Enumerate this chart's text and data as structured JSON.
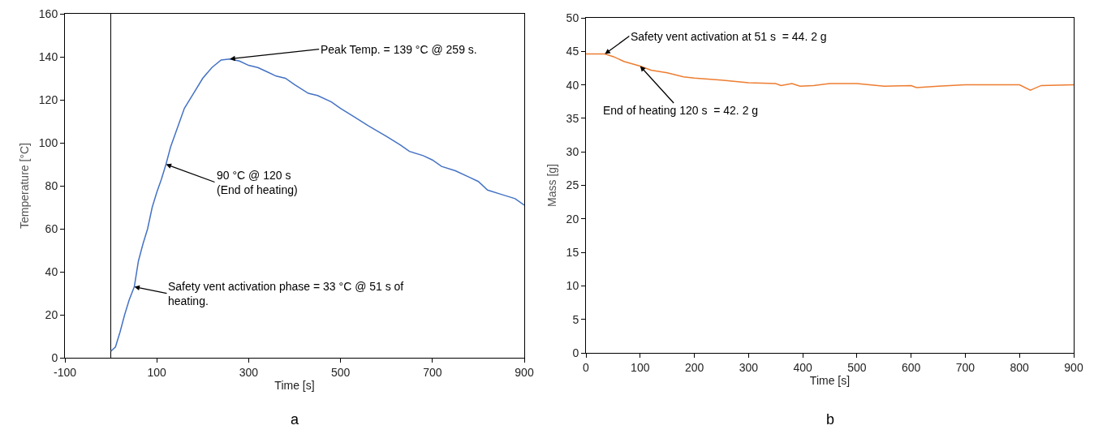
{
  "chart_data": [
    {
      "type": "line",
      "xlabel": "Time [s]",
      "ylabel": "Temperature [°C]",
      "xlim": [
        -100,
        900
      ],
      "xticks": [
        -100,
        100,
        300,
        500,
        700,
        900
      ],
      "ylim": [
        0,
        160
      ],
      "yticks": [
        0,
        20,
        40,
        60,
        80,
        100,
        120,
        140,
        160
      ],
      "grid": false,
      "marker": "none",
      "line_style": "solid",
      "series": [
        {
          "color": "#4472c4",
          "x": [
            0,
            10,
            20,
            30,
            40,
            51,
            60,
            70,
            80,
            90,
            100,
            110,
            120,
            130,
            150,
            160,
            180,
            200,
            220,
            240,
            259,
            280,
            300,
            320,
            340,
            360,
            380,
            400,
            430,
            450,
            480,
            500,
            530,
            560,
            600,
            630,
            650,
            680,
            700,
            720,
            750,
            780,
            800,
            820,
            850,
            880,
            900
          ],
          "values": [
            3,
            5,
            12,
            20,
            27,
            33,
            45,
            53,
            60,
            70,
            77,
            83,
            90,
            98,
            110,
            116,
            123,
            130,
            135,
            138.5,
            139,
            138,
            136,
            135,
            133,
            131,
            130,
            127,
            123,
            122,
            119,
            116,
            112,
            108,
            103,
            99,
            96,
            94,
            92,
            89,
            87,
            84,
            82,
            78,
            76,
            74,
            71
          ]
        }
      ],
      "annotations": [
        {
          "text": "Peak Temp. = 139 °C @ 259 s.",
          "x": 259,
          "y": 139
        },
        {
          "text": "90 °C @ 120 s\n(End of heating)",
          "x": 120,
          "y": 90
        },
        {
          "text": "Safety vent activation phase = 33 °C @ 51 s of\nheating.",
          "x": 51,
          "y": 33
        },
        "a"
      ]
    },
    {
      "type": "line",
      "xlabel": "Time [s]",
      "ylabel": "Mass [g]",
      "xlim": [
        0,
        900
      ],
      "xticks": [
        0,
        100,
        200,
        300,
        400,
        500,
        600,
        700,
        800,
        900
      ],
      "ylim": [
        0,
        50
      ],
      "yticks": [
        0,
        5,
        10,
        15,
        20,
        25,
        30,
        35,
        40,
        45,
        50
      ],
      "grid": false,
      "marker": "none",
      "line_style": "solid",
      "series": [
        {
          "color": "#ed7d31",
          "x": [
            0,
            35,
            51,
            70,
            100,
            120,
            150,
            180,
            200,
            250,
            300,
            350,
            360,
            380,
            395,
            420,
            450,
            500,
            550,
            600,
            610,
            650,
            700,
            800,
            820,
            840,
            900
          ],
          "values": [
            44.6,
            44.6,
            44.2,
            43.5,
            42.8,
            42.2,
            41.8,
            41.2,
            41,
            40.7,
            40.3,
            40.2,
            39.9,
            40.2,
            39.8,
            39.9,
            40.2,
            40.2,
            39.8,
            39.9,
            39.6,
            39.8,
            40,
            40,
            39.2,
            39.9,
            40
          ]
        }
      ],
      "annotations": [
        {
          "text": "Safety vent activation at 51 s  = 44. 2 g",
          "x": 35,
          "y": 44.6
        },
        {
          "text": "End of heating 120 s  = 42. 2 g",
          "x": 100,
          "y": 42.8
        },
        "b"
      ]
    }
  ]
}
